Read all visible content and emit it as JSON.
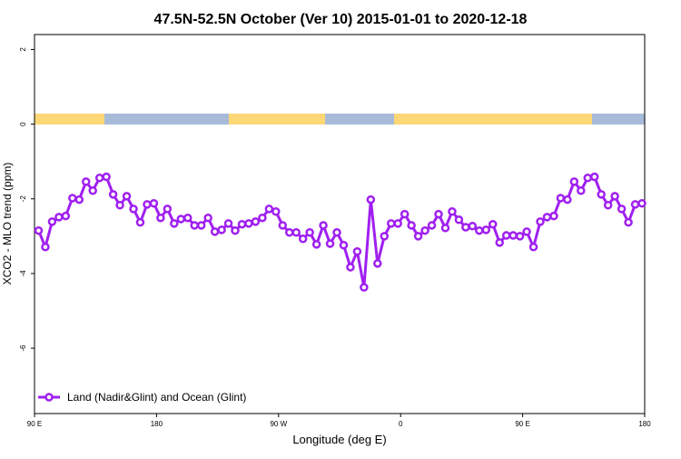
{
  "chart_data": {
    "type": "line",
    "title": "47.5N-52.5N October (Ver 10)   2015-01-01 to 2020-12-18",
    "x_label": "Longitude (deg E)",
    "y_label": "XCO2 - MLO trend (ppm)",
    "xlim": [
      90,
      540
    ],
    "ylim": [
      -7.75,
      2.4
    ],
    "xticks": [
      {
        "value": 90,
        "label": "90 E"
      },
      {
        "value": 180,
        "label": "180"
      },
      {
        "value": 270,
        "label": "90 W"
      },
      {
        "value": 360,
        "label": "0"
      },
      {
        "value": 450,
        "label": "90 E"
      },
      {
        "value": 540,
        "label": "180"
      }
    ],
    "yticks": [
      -6,
      -4,
      -2,
      0,
      2
    ],
    "legend": "bottom-left",
    "x": [
      93,
      98,
      103,
      108,
      113,
      118,
      123,
      128,
      133,
      138,
      143,
      148,
      153,
      158,
      163,
      168,
      173,
      178,
      183,
      188,
      193,
      198,
      203,
      208,
      213,
      218,
      223,
      228,
      233,
      238,
      243,
      248,
      253,
      258,
      263,
      268,
      273,
      278,
      283,
      288,
      293,
      298,
      303,
      308,
      313,
      318,
      323,
      328,
      333,
      338,
      343,
      348,
      353,
      358,
      363,
      368,
      373,
      378,
      383,
      388,
      393,
      398,
      403,
      408,
      413,
      418,
      423,
      428,
      433,
      438,
      443,
      448,
      453,
      458,
      463,
      468,
      473,
      478,
      483,
      488,
      493,
      498,
      503,
      508,
      513,
      518,
      523,
      528,
      533,
      538
    ],
    "series": [
      {
        "name": "Land (Nadir&Glint) and Ocean (Glint)",
        "color": "#a020f0",
        "values": [
          -2.85,
          -3.29,
          -2.61,
          -2.49,
          -2.46,
          -1.98,
          -2.02,
          -1.54,
          -1.78,
          -1.44,
          -1.41,
          -1.88,
          -2.17,
          -1.93,
          -2.27,
          -2.63,
          -2.15,
          -2.12,
          -2.51,
          -2.27,
          -2.66,
          -2.54,
          -2.51,
          -2.71,
          -2.71,
          -2.51,
          -2.88,
          -2.83,
          -2.66,
          -2.85,
          -2.68,
          -2.66,
          -2.61,
          -2.51,
          -2.27,
          -2.34,
          -2.71,
          -2.9,
          -2.9,
          -3.07,
          -2.9,
          -3.22,
          -2.71,
          -3.2,
          -2.9,
          -3.24,
          -3.83,
          -3.41,
          -4.37,
          -2.02,
          -3.73,
          -3.0,
          -2.66,
          -2.66,
          -2.41,
          -2.71,
          -3.0,
          -2.85,
          -2.71,
          -2.41,
          -2.78,
          -2.34,
          -2.56,
          -2.76,
          -2.73,
          -2.85,
          -2.83,
          -2.68,
          -3.17,
          -2.98,
          -2.98,
          -3.0,
          -2.88,
          -3.29,
          -2.61,
          -2.49,
          -2.46,
          -1.98,
          -2.02,
          -1.54,
          -1.78,
          -1.44,
          -1.41,
          -1.88,
          -2.17,
          -1.93,
          -2.27,
          -2.63,
          -2.15,
          -2.12
        ]
      }
    ]
  }
}
